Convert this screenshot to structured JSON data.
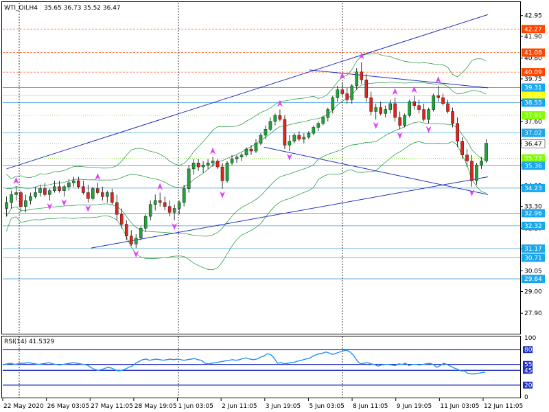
{
  "header": {
    "symbol_label": "WTI_Oil,H4",
    "ohlc_label": "35.65 36.73 35.52 36.47"
  },
  "rsi_panel": {
    "label": "RSI(14) 41.5329",
    "levels": [
      80,
      55,
      45,
      20
    ],
    "scale_labels": [
      "100",
      "80",
      "55",
      "45",
      "20",
      "0"
    ],
    "current": 41.5329,
    "values": [
      55,
      56,
      57,
      55,
      56,
      57,
      57,
      58,
      57,
      56,
      55,
      56,
      57,
      58,
      56,
      55,
      54,
      55,
      56,
      57,
      58,
      57,
      56,
      55,
      54,
      50,
      47,
      45,
      46,
      48,
      50,
      49,
      46,
      44,
      45,
      47,
      50,
      52,
      57,
      60,
      63,
      64,
      62,
      63,
      64,
      63,
      62,
      63,
      64,
      63,
      64,
      63,
      62,
      63,
      64,
      65,
      63,
      62,
      57,
      56,
      57,
      58,
      59,
      60,
      61,
      62,
      63,
      62,
      63,
      65,
      66,
      64,
      63,
      64,
      67,
      69,
      73,
      72,
      66,
      57,
      58,
      56,
      57,
      58,
      59,
      61,
      62,
      64,
      65,
      68,
      71,
      73,
      74,
      76,
      74,
      72,
      74,
      76,
      78,
      79,
      76,
      70,
      61,
      56,
      57,
      58,
      56,
      55,
      52,
      54,
      55,
      55,
      54,
      53,
      56,
      55,
      57,
      53,
      55,
      55,
      54,
      55,
      56,
      57,
      55,
      50,
      53,
      57,
      55,
      52,
      49,
      47,
      44,
      44,
      40,
      39,
      39,
      40,
      41,
      42
    ]
  },
  "chart_data": {
    "type": "candlestick",
    "symbol": "WTI_Oil",
    "timeframe": "H4",
    "ylim": [
      26.9,
      43.6
    ],
    "price_axis_ticks": [
      "42.95",
      "41.90",
      "40.80",
      "39.75",
      "38.65",
      "37.60",
      "36.50",
      "35.40",
      "34.35",
      "33.30",
      "32.20",
      "31.15",
      "30.05",
      "29.00",
      "27.90"
    ],
    "x_labels": [
      "22 May 2020",
      "26 May 03:05",
      "27 May 11:05",
      "28 May 19:05",
      "1 Jun 03:05",
      "2 Jun 11:05",
      "3 Jun 19:05",
      "5 Jun 03:05",
      "8 Jun 11:05",
      "9 Jun 19:05",
      "11 Jun 03:05",
      "12 Jun 11:05"
    ],
    "horizontal_levels": [
      {
        "price": 42.27,
        "label": "42.27",
        "style": "dash",
        "color": "#ff4500"
      },
      {
        "price": 41.08,
        "label": "41.08",
        "style": "dash",
        "color": "#ff4500"
      },
      {
        "price": 40.09,
        "label": "40.09",
        "style": "dash",
        "color": "#ff4500"
      },
      {
        "price": 39.31,
        "label": "39.31",
        "style": "solid",
        "color": "#00aaff"
      },
      {
        "price": 38.89,
        "label": "38.89",
        "style": "solid",
        "color": "#ffff00"
      },
      {
        "price": 38.55,
        "label": "38.55",
        "style": "solid",
        "color": "#00aaff"
      },
      {
        "price": 37.91,
        "label": "37.91",
        "style": "dot",
        "color": "#7fff00"
      },
      {
        "price": 37.02,
        "label": "37.02",
        "style": "solid",
        "color": "#00aaff"
      },
      {
        "price": 36.47,
        "label": "36.47",
        "style": "dot",
        "color": "#ffffff",
        "current": true
      },
      {
        "price": 35.73,
        "label": "35.73",
        "style": "dot",
        "color": "#7fff00"
      },
      {
        "price": 35.36,
        "label": "35.36",
        "style": "solid",
        "color": "#00aaff"
      },
      {
        "price": 34.23,
        "label": "34.23",
        "style": "solid",
        "color": "#00aaff"
      },
      {
        "price": 32.96,
        "label": "32.96",
        "style": "solid",
        "color": "#00aaff"
      },
      {
        "price": 32.32,
        "label": "32.32",
        "style": "solid",
        "color": "#00aaff"
      },
      {
        "price": 31.17,
        "label": "31.17",
        "style": "solid",
        "color": "#00aaff"
      },
      {
        "price": 30.71,
        "label": "30.71",
        "style": "solid",
        "color": "#00aaff"
      },
      {
        "price": 29.64,
        "label": "29.64",
        "style": "solid",
        "color": "#00aaff"
      }
    ],
    "trendlines": [
      {
        "from": [
          0,
          35.2
        ],
        "to": [
          159,
          43.0
        ]
      },
      {
        "from": [
          28,
          31.2
        ],
        "to": [
          159,
          34.8
        ]
      },
      {
        "from": [
          85,
          36.3
        ],
        "to": [
          159,
          33.9
        ]
      },
      {
        "from": [
          100,
          40.2
        ],
        "to": [
          159,
          39.3
        ]
      }
    ],
    "candles": [
      {
        "o": 33.2,
        "h": 33.8,
        "l": 32.8,
        "c": 33.5
      },
      {
        "o": 33.5,
        "h": 34.1,
        "l": 33.2,
        "c": 33.9
      },
      {
        "o": 33.9,
        "h": 34.3,
        "l": 33.6,
        "c": 34.0
      },
      {
        "o": 34.0,
        "h": 34.1,
        "l": 33.0,
        "c": 33.3
      },
      {
        "o": 33.3,
        "h": 33.9,
        "l": 33.0,
        "c": 33.6
      },
      {
        "o": 33.6,
        "h": 34.0,
        "l": 33.4,
        "c": 33.8
      },
      {
        "o": 33.8,
        "h": 34.3,
        "l": 33.7,
        "c": 34.0
      },
      {
        "o": 34.0,
        "h": 34.4,
        "l": 33.8,
        "c": 34.2
      },
      {
        "o": 34.2,
        "h": 34.5,
        "l": 33.8,
        "c": 33.9
      },
      {
        "o": 33.9,
        "h": 34.2,
        "l": 33.6,
        "c": 34.1
      },
      {
        "o": 34.1,
        "h": 34.6,
        "l": 34.0,
        "c": 34.3
      },
      {
        "o": 34.3,
        "h": 34.6,
        "l": 34.0,
        "c": 34.1
      },
      {
        "o": 34.1,
        "h": 34.4,
        "l": 33.8,
        "c": 34.3
      },
      {
        "o": 34.3,
        "h": 34.7,
        "l": 34.1,
        "c": 34.5
      },
      {
        "o": 34.5,
        "h": 34.8,
        "l": 34.3,
        "c": 34.6
      },
      {
        "o": 34.6,
        "h": 34.8,
        "l": 34.2,
        "c": 34.3
      },
      {
        "o": 34.3,
        "h": 34.6,
        "l": 33.9,
        "c": 34.0
      },
      {
        "o": 34.0,
        "h": 34.4,
        "l": 33.5,
        "c": 33.7
      },
      {
        "o": 33.7,
        "h": 34.3,
        "l": 33.6,
        "c": 34.2
      },
      {
        "o": 34.2,
        "h": 34.5,
        "l": 33.9,
        "c": 34.0
      },
      {
        "o": 34.0,
        "h": 34.3,
        "l": 33.6,
        "c": 33.8
      },
      {
        "o": 33.8,
        "h": 34.1,
        "l": 33.5,
        "c": 34.0
      },
      {
        "o": 34.0,
        "h": 34.2,
        "l": 33.4,
        "c": 33.5
      },
      {
        "o": 33.5,
        "h": 33.9,
        "l": 32.6,
        "c": 32.9
      },
      {
        "o": 32.9,
        "h": 33.2,
        "l": 32.2,
        "c": 32.4
      },
      {
        "o": 32.4,
        "h": 32.6,
        "l": 31.6,
        "c": 31.8
      },
      {
        "o": 31.8,
        "h": 32.1,
        "l": 31.3,
        "c": 31.4
      },
      {
        "o": 31.4,
        "h": 31.9,
        "l": 31.2,
        "c": 31.7
      },
      {
        "o": 31.7,
        "h": 32.3,
        "l": 31.6,
        "c": 32.2
      },
      {
        "o": 32.2,
        "h": 32.9,
        "l": 32.0,
        "c": 32.8
      },
      {
        "o": 32.8,
        "h": 33.6,
        "l": 32.6,
        "c": 33.4
      },
      {
        "o": 33.4,
        "h": 33.9,
        "l": 33.1,
        "c": 33.6
      },
      {
        "o": 33.6,
        "h": 34.0,
        "l": 33.3,
        "c": 33.5
      },
      {
        "o": 33.5,
        "h": 33.8,
        "l": 33.1,
        "c": 33.3
      },
      {
        "o": 33.3,
        "h": 33.6,
        "l": 32.8,
        "c": 33.0
      },
      {
        "o": 33.0,
        "h": 33.4,
        "l": 32.6,
        "c": 33.2
      },
      {
        "o": 33.2,
        "h": 33.6,
        "l": 32.9,
        "c": 33.5
      },
      {
        "o": 33.5,
        "h": 34.4,
        "l": 33.3,
        "c": 34.2
      },
      {
        "o": 34.2,
        "h": 35.4,
        "l": 34.0,
        "c": 35.2
      },
      {
        "o": 35.2,
        "h": 35.7,
        "l": 34.9,
        "c": 35.5
      },
      {
        "o": 35.5,
        "h": 35.7,
        "l": 35.1,
        "c": 35.3
      },
      {
        "o": 35.3,
        "h": 35.6,
        "l": 35.0,
        "c": 35.4
      },
      {
        "o": 35.4,
        "h": 35.7,
        "l": 35.2,
        "c": 35.5
      },
      {
        "o": 35.5,
        "h": 35.8,
        "l": 35.3,
        "c": 35.6
      },
      {
        "o": 35.6,
        "h": 35.7,
        "l": 35.2,
        "c": 35.3
      },
      {
        "o": 35.3,
        "h": 35.5,
        "l": 34.2,
        "c": 34.6
      },
      {
        "o": 34.6,
        "h": 35.6,
        "l": 34.5,
        "c": 35.5
      },
      {
        "o": 35.5,
        "h": 35.9,
        "l": 35.4,
        "c": 35.7
      },
      {
        "o": 35.7,
        "h": 35.9,
        "l": 35.5,
        "c": 35.8
      },
      {
        "o": 35.8,
        "h": 36.0,
        "l": 35.6,
        "c": 35.9
      },
      {
        "o": 35.9,
        "h": 36.3,
        "l": 35.8,
        "c": 36.2
      },
      {
        "o": 36.2,
        "h": 36.4,
        "l": 35.9,
        "c": 36.1
      },
      {
        "o": 36.1,
        "h": 36.7,
        "l": 36.0,
        "c": 36.5
      },
      {
        "o": 36.5,
        "h": 37.0,
        "l": 36.4,
        "c": 36.9
      },
      {
        "o": 36.9,
        "h": 37.4,
        "l": 36.7,
        "c": 37.2
      },
      {
        "o": 37.2,
        "h": 37.8,
        "l": 37.1,
        "c": 37.6
      },
      {
        "o": 37.6,
        "h": 38.0,
        "l": 37.4,
        "c": 37.9
      },
      {
        "o": 37.9,
        "h": 38.2,
        "l": 37.6,
        "c": 37.7
      },
      {
        "o": 37.7,
        "h": 37.9,
        "l": 36.2,
        "c": 36.4
      },
      {
        "o": 36.4,
        "h": 36.9,
        "l": 36.1,
        "c": 36.6
      },
      {
        "o": 36.6,
        "h": 37.0,
        "l": 36.5,
        "c": 36.9
      },
      {
        "o": 36.9,
        "h": 37.1,
        "l": 36.6,
        "c": 36.7
      },
      {
        "o": 36.7,
        "h": 37.0,
        "l": 36.5,
        "c": 36.8
      },
      {
        "o": 36.8,
        "h": 37.1,
        "l": 36.7,
        "c": 37.0
      },
      {
        "o": 37.0,
        "h": 37.4,
        "l": 36.9,
        "c": 37.3
      },
      {
        "o": 37.3,
        "h": 37.6,
        "l": 37.1,
        "c": 37.5
      },
      {
        "o": 37.5,
        "h": 37.9,
        "l": 37.4,
        "c": 37.8
      },
      {
        "o": 37.8,
        "h": 38.3,
        "l": 37.6,
        "c": 38.2
      },
      {
        "o": 38.2,
        "h": 38.9,
        "l": 38.0,
        "c": 38.8
      },
      {
        "o": 38.8,
        "h": 39.4,
        "l": 38.6,
        "c": 39.2
      },
      {
        "o": 39.2,
        "h": 39.6,
        "l": 38.9,
        "c": 39.0
      },
      {
        "o": 39.0,
        "h": 39.3,
        "l": 38.5,
        "c": 38.7
      },
      {
        "o": 38.7,
        "h": 39.5,
        "l": 38.5,
        "c": 39.4
      },
      {
        "o": 39.4,
        "h": 40.3,
        "l": 39.2,
        "c": 40.1
      },
      {
        "o": 40.1,
        "h": 40.6,
        "l": 39.5,
        "c": 39.7
      },
      {
        "o": 39.7,
        "h": 40.0,
        "l": 38.6,
        "c": 38.8
      },
      {
        "o": 38.8,
        "h": 39.1,
        "l": 37.9,
        "c": 38.1
      },
      {
        "o": 38.1,
        "h": 38.5,
        "l": 37.7,
        "c": 38.3
      },
      {
        "o": 38.3,
        "h": 38.6,
        "l": 37.9,
        "c": 38.0
      },
      {
        "o": 38.0,
        "h": 38.4,
        "l": 37.8,
        "c": 38.2
      },
      {
        "o": 38.2,
        "h": 38.7,
        "l": 38.0,
        "c": 38.5
      },
      {
        "o": 38.5,
        "h": 38.8,
        "l": 37.6,
        "c": 37.8
      },
      {
        "o": 37.8,
        "h": 38.1,
        "l": 37.2,
        "c": 37.4
      },
      {
        "o": 37.4,
        "h": 38.0,
        "l": 37.3,
        "c": 37.9
      },
      {
        "o": 37.9,
        "h": 38.7,
        "l": 37.8,
        "c": 38.6
      },
      {
        "o": 38.6,
        "h": 38.9,
        "l": 38.2,
        "c": 38.4
      },
      {
        "o": 38.4,
        "h": 38.7,
        "l": 38.0,
        "c": 38.2
      },
      {
        "o": 38.2,
        "h": 38.5,
        "l": 37.6,
        "c": 37.7
      },
      {
        "o": 37.7,
        "h": 38.3,
        "l": 37.5,
        "c": 38.2
      },
      {
        "o": 38.2,
        "h": 39.0,
        "l": 38.1,
        "c": 38.9
      },
      {
        "o": 38.9,
        "h": 39.4,
        "l": 38.6,
        "c": 38.8
      },
      {
        "o": 38.8,
        "h": 39.0,
        "l": 38.4,
        "c": 38.5
      },
      {
        "o": 38.5,
        "h": 38.7,
        "l": 38.0,
        "c": 38.1
      },
      {
        "o": 38.1,
        "h": 38.3,
        "l": 37.3,
        "c": 37.5
      },
      {
        "o": 37.5,
        "h": 37.8,
        "l": 36.3,
        "c": 36.6
      },
      {
        "o": 36.6,
        "h": 36.8,
        "l": 35.7,
        "c": 35.9
      },
      {
        "o": 35.9,
        "h": 36.2,
        "l": 35.3,
        "c": 35.6
      },
      {
        "o": 35.6,
        "h": 35.9,
        "l": 34.3,
        "c": 34.6
      },
      {
        "o": 34.6,
        "h": 35.5,
        "l": 34.4,
        "c": 35.4
      },
      {
        "o": 35.4,
        "h": 35.8,
        "l": 35.2,
        "c": 35.6
      },
      {
        "o": 35.6,
        "h": 36.7,
        "l": 35.5,
        "c": 36.5
      }
    ]
  }
}
